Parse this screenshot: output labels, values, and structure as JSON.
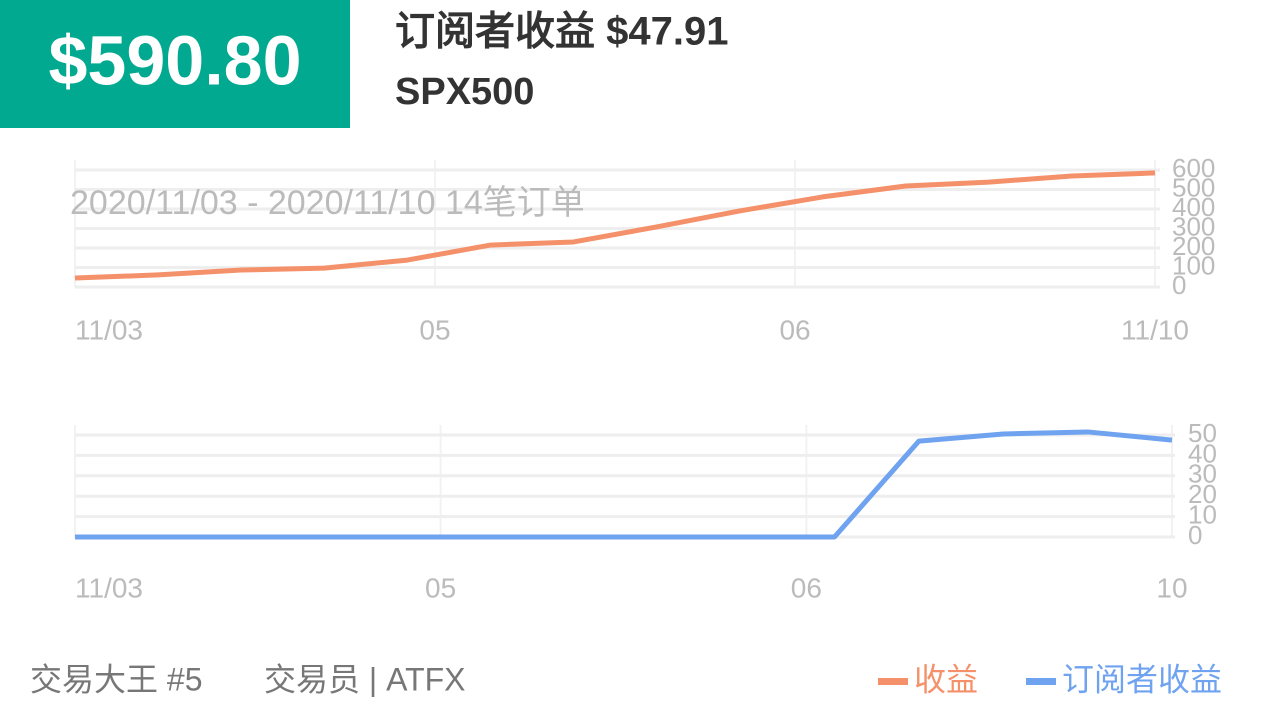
{
  "header": {
    "amount": "$590.80",
    "title": "订阅者收益 $47.91",
    "symbol": "SPX500"
  },
  "footer": {
    "trader": "交易大王 #5",
    "role": "交易员 | ATFX"
  },
  "chart_data": [
    {
      "type": "line",
      "annotation": "2020/11/03 - 2020/11/10  14笔订单",
      "x": [
        0,
        1,
        2,
        3,
        4,
        5,
        6,
        7,
        8,
        9,
        10,
        11,
        12,
        13
      ],
      "series": [
        {
          "name": "收益",
          "color": "#f4916a",
          "values": [
            46,
            62,
            87,
            97,
            138,
            215,
            231,
            308,
            390,
            462,
            518,
            538,
            569,
            585
          ]
        }
      ],
      "xlim": [
        0,
        13
      ],
      "xticks": [
        {
          "value": 0,
          "label": "11/03"
        },
        {
          "value": 4.333,
          "label": "05"
        },
        {
          "value": 8.667,
          "label": "06"
        },
        {
          "value": 13,
          "label": "11/10"
        }
      ],
      "ylim": [
        0,
        600
      ],
      "yticks": [
        0,
        100,
        200,
        300,
        400,
        500,
        600
      ],
      "grid": true
    },
    {
      "type": "line",
      "x": [
        0,
        1,
        2,
        3,
        4,
        5,
        6,
        7,
        8,
        9,
        10,
        11,
        12,
        13
      ],
      "series": [
        {
          "name": "订阅者收益",
          "color": "#6fa3f0",
          "values": [
            0,
            0,
            0,
            0,
            0,
            0,
            0,
            0,
            0,
            0,
            47,
            50.5,
            51.5,
            47.5
          ]
        }
      ],
      "xlim": [
        0,
        13
      ],
      "xticks": [
        {
          "value": 0,
          "label": "11/03"
        },
        {
          "value": 4.333,
          "label": "05"
        },
        {
          "value": 8.667,
          "label": "06"
        },
        {
          "value": 13,
          "label": "10"
        }
      ],
      "ylim": [
        0,
        50
      ],
      "yticks": [
        0,
        10,
        20,
        30,
        40,
        50
      ],
      "grid": true
    }
  ]
}
